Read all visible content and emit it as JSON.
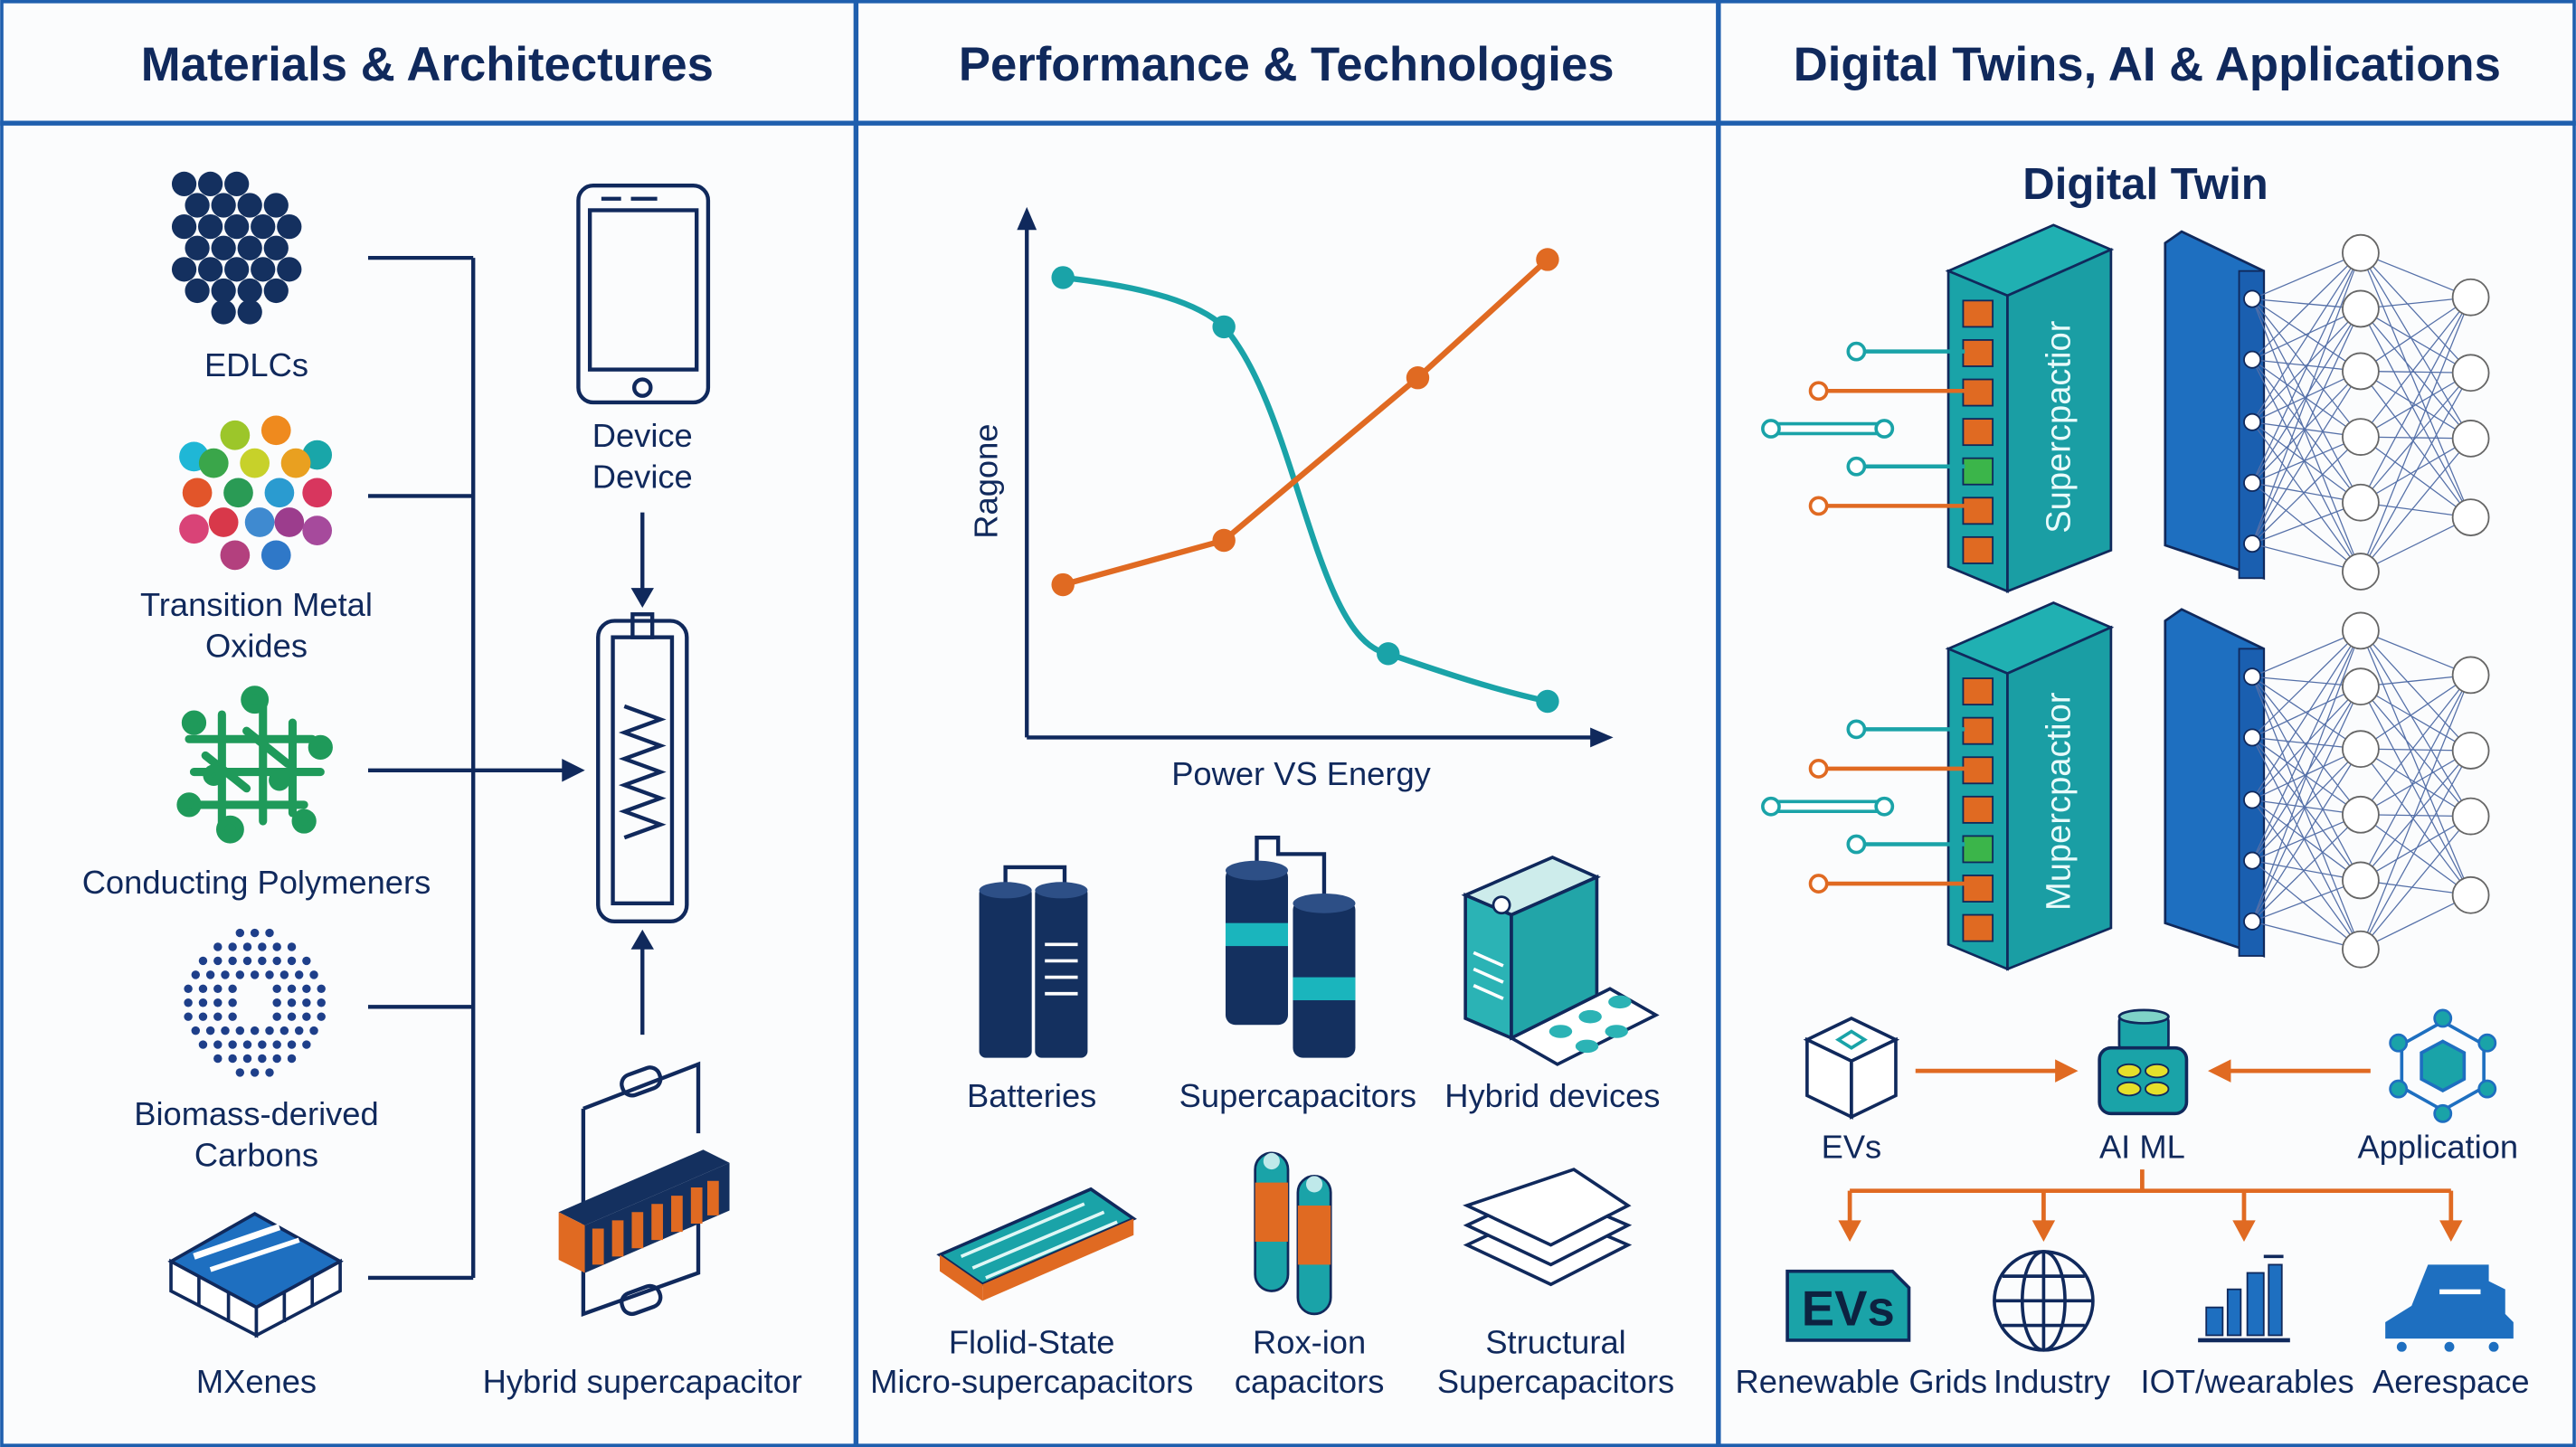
{
  "columns": {
    "materials": {
      "title": "Materials & Architectures",
      "items": [
        "EDLCs",
        "Transition Metal",
        "Oxides",
        "Conducting Polymeners",
        "Biomass-derived",
        "Carbons",
        "MXenes"
      ],
      "device_label_1": "Device",
      "device_label_2": "Device",
      "hybrid_label": "Hybrid supercapacitor"
    },
    "performance": {
      "title": "Performance & Technologies",
      "chart_ylabel": "Ragone",
      "chart_xlabel": "Power VS Energy",
      "technologies": [
        "Batteries",
        "Supercapacitors",
        "Hybrid devices"
      ],
      "technologies_row2": [
        {
          "line1": "Flolid-State",
          "line2": "Micro-supercapacitors"
        },
        {
          "line1": "Rox-ion",
          "line2": "capacitors"
        },
        {
          "line1": "Structural",
          "line2": "Supercapacitors"
        }
      ]
    },
    "digital": {
      "title": "Digital Twins, AI & Applications",
      "subtitle": "Digital Twin",
      "block_1": "Supercpactior",
      "block_2": "Mupercpactior",
      "flow": [
        "EVs",
        "AI ML",
        "Application"
      ],
      "applications": [
        "Renewable Grids",
        "Industry",
        "IOT/wearables",
        "Aerespace"
      ],
      "badge_text": "EVs"
    }
  },
  "colors": {
    "navy": "#10295c",
    "teal": "#1aa3a8",
    "orange": "#e06a22",
    "blue": "#1e6fc0",
    "border": "#1f5fae"
  }
}
